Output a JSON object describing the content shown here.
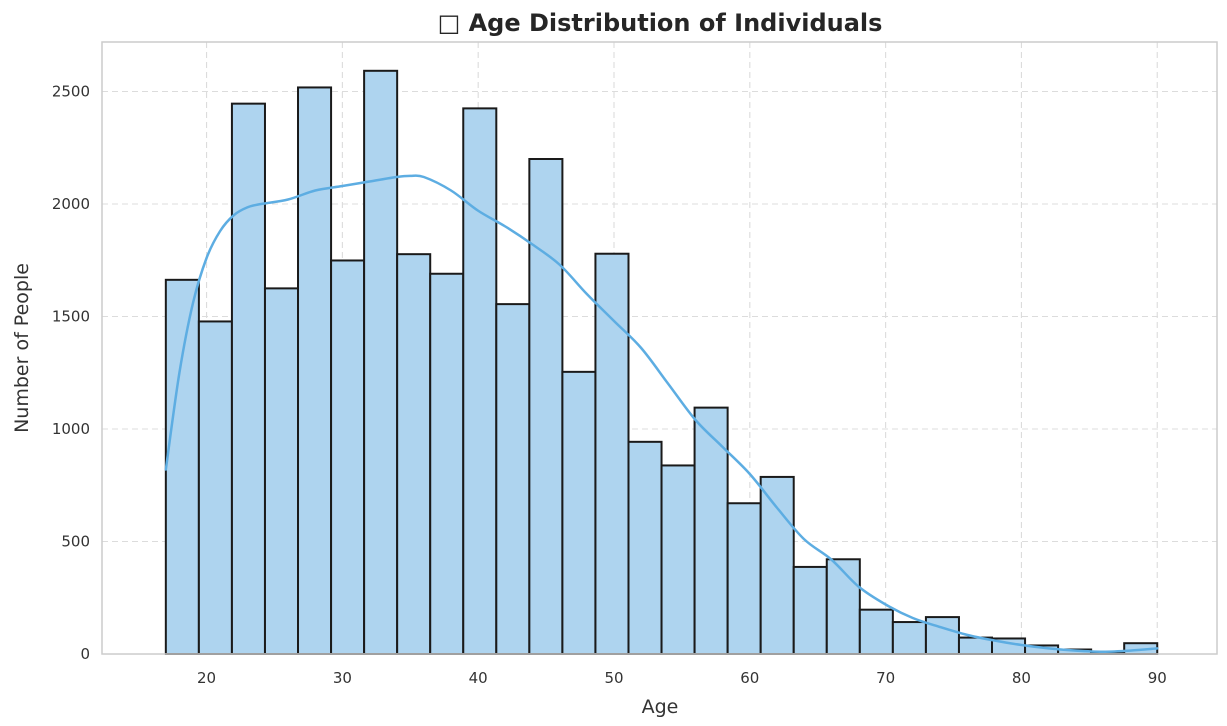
{
  "chart_data": {
    "type": "bar",
    "title": "□ Age Distribution of Individuals",
    "xlabel": "Age",
    "ylabel": "Number of People",
    "xlim": [
      12.3,
      94.4
    ],
    "ylim": [
      0,
      2720
    ],
    "x_ticks": [
      20,
      30,
      40,
      50,
      60,
      70,
      80,
      90
    ],
    "y_ticks": [
      0,
      500,
      1000,
      1500,
      2000,
      2500
    ],
    "grid": true,
    "legend": "none",
    "bin_edges": [
      17.0,
      19.433,
      21.867,
      24.3,
      26.733,
      29.167,
      31.6,
      34.033,
      36.467,
      38.9,
      41.333,
      43.767,
      46.2,
      48.633,
      51.067,
      53.5,
      55.933,
      58.367,
      60.8,
      63.233,
      65.667,
      68.1,
      70.533,
      72.967,
      75.4,
      77.833,
      80.267,
      82.7,
      85.133,
      87.567,
      90.0
    ],
    "values": [
      1663,
      1478,
      2446,
      1625,
      2518,
      1749,
      2592,
      1777,
      1690,
      2425,
      1555,
      2200,
      1254,
      1779,
      943,
      838,
      1095,
      670,
      787,
      387,
      421,
      197,
      142,
      164,
      73,
      69,
      38,
      20,
      8,
      48
    ],
    "series": [
      {
        "kind": "kde",
        "x": [
          17,
          18,
          19,
          20,
          21,
          22,
          23,
          24,
          26,
          28,
          30,
          32,
          34,
          35,
          36,
          38,
          40,
          42,
          44,
          46,
          48,
          50,
          52,
          54,
          56,
          58,
          60,
          62,
          64,
          66,
          68,
          70,
          72,
          74,
          76,
          78,
          80,
          82,
          84,
          86,
          88,
          90
        ],
        "y": [
          820,
          1250,
          1560,
          1760,
          1880,
          1950,
          1985,
          2000,
          2020,
          2060,
          2080,
          2100,
          2120,
          2125,
          2120,
          2060,
          1970,
          1900,
          1820,
          1730,
          1600,
          1480,
          1360,
          1200,
          1040,
          920,
          800,
          650,
          510,
          420,
          300,
          220,
          160,
          120,
          85,
          60,
          40,
          25,
          15,
          10,
          15,
          25
        ]
      }
    ],
    "colors": {
      "bar_fill": "#aed4ef",
      "bar_edge": "#1a1a1a",
      "kde_line": "#5dade2",
      "grid": "#dcdcdc",
      "frame": "#cccccc"
    }
  }
}
